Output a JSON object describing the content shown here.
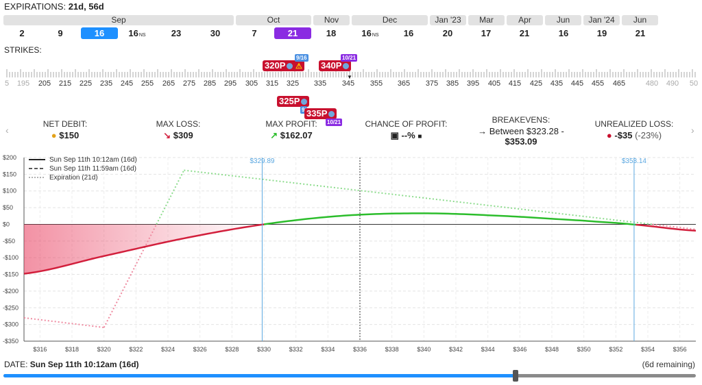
{
  "expirations": {
    "label": "EXPIRATIONS:",
    "selected": "21d, 56d",
    "months": [
      "Sep",
      "Oct",
      "Nov",
      "Dec",
      "Jan '23",
      "Mar",
      "Apr",
      "Jun",
      "Jan '24",
      "Jun"
    ],
    "days": [
      "2",
      "9",
      "16",
      "16",
      "23",
      "30",
      "7",
      "21",
      "18",
      "16",
      "16",
      "20",
      "17",
      "21",
      "16",
      "19",
      "21"
    ],
    "ns_tag": "NS"
  },
  "strikes": {
    "label": "STRIKES:",
    "ticks": [
      "5",
      "195",
      "205",
      "215",
      "225",
      "235",
      "245",
      "255",
      "265",
      "275",
      "285",
      "295",
      "305",
      "315",
      "325",
      "335",
      "345",
      "355",
      "365",
      "375",
      "385",
      "395",
      "405",
      "415",
      "425",
      "435",
      "445",
      "455",
      "465",
      "480",
      "490",
      "50"
    ]
  },
  "legs": [
    {
      "label": "320P",
      "badge": "9/16"
    },
    {
      "label": "340P",
      "badge": "10/21"
    },
    {
      "label": "325P",
      "badge": "9/16"
    },
    {
      "label": "335P",
      "badge": "10/21"
    }
  ],
  "stats": {
    "net_debit_label": "NET DEBIT:",
    "net_debit": "$150",
    "max_loss_label": "MAX LOSS:",
    "max_loss": "$309",
    "max_profit_label": "MAX PROFIT:",
    "max_profit": "$162.07",
    "chance_label": "CHANCE OF PROFIT:",
    "chance": "--%",
    "breakevens_label": "BREAKEVENS:",
    "breakevens_line1": "Between $323.28 -",
    "breakevens_line2": "$353.09",
    "unrealized_label": "UNREALIZED LOSS:",
    "unrealized": "-$35",
    "unrealized_pct": "(-23%)"
  },
  "chart_data": {
    "type": "line",
    "xlabel": "",
    "ylabel": "",
    "xlim": [
      315,
      357
    ],
    "ylim": [
      -350,
      200
    ],
    "x_ticks": [
      316,
      318,
      320,
      322,
      324,
      326,
      328,
      330,
      332,
      334,
      336,
      338,
      340,
      342,
      344,
      346,
      348,
      350,
      352,
      354,
      356
    ],
    "x_tick_labels": [
      "$316",
      "$318",
      "$320",
      "$322",
      "$324",
      "$326",
      "$328",
      "$330",
      "$332",
      "$334",
      "$336",
      "$338",
      "$340",
      "$342",
      "$344",
      "$346",
      "$348",
      "$350",
      "$352",
      "$354",
      "$356"
    ],
    "y_ticks": [
      200,
      150,
      100,
      50,
      0,
      -50,
      -100,
      -150,
      -200,
      -250,
      -300,
      -350
    ],
    "y_tick_labels": [
      "$200",
      "$150",
      "$100",
      "$50",
      "$0",
      "-$50",
      "-$100",
      "-$150",
      "-$200",
      "-$250",
      "-$300",
      "-$350"
    ],
    "series": [
      {
        "name": "Sun Sep 11th 10:12am (16d)",
        "style": "solid",
        "x": [
          315,
          320,
          325,
          330,
          335,
          340,
          345,
          350,
          353,
          357
        ],
        "values": [
          -148,
          -95,
          -42,
          0,
          26,
          33,
          25,
          11,
          0,
          -19
        ]
      },
      {
        "name": "Sun Sep 11th 11:59am (16d)",
        "style": "dashed",
        "x": [],
        "values": []
      },
      {
        "name": "Expiration (21d)",
        "style": "dotted",
        "x": [
          315,
          320,
          325,
          357
        ],
        "values": [
          -280,
          -309,
          162,
          -15
        ]
      }
    ],
    "markers": [
      {
        "x": 329.89,
        "label": "$329.89"
      },
      {
        "x": 353.14,
        "label": "$353.14"
      },
      {
        "x": 336,
        "label": ""
      }
    ],
    "colors": {
      "loss": "#d21f3c",
      "profit": "#2bbd2b",
      "exp_loss": "#ef8aa0",
      "exp_profit": "#8ddc8d",
      "marker": "#5aa7e0"
    }
  },
  "date": {
    "label": "DATE:",
    "value": "Sun Sep 11th 10:12am (16d)",
    "remaining": "(6d remaining)",
    "progress": 0.74
  }
}
